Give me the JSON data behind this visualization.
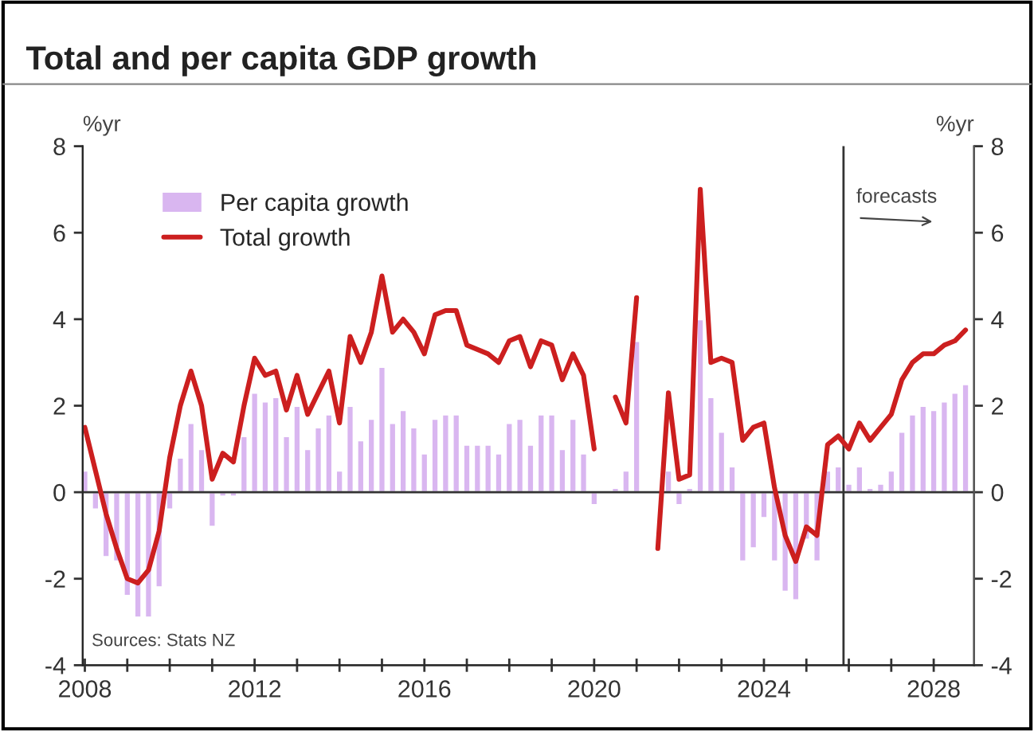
{
  "chart_data": {
    "type": "bar",
    "title": "Total and per capita GDP growth",
    "ylabel": "%yr",
    "y2label": "%yr",
    "x": [
      2008.0,
      2008.25,
      2008.5,
      2008.75,
      2009.0,
      2009.25,
      2009.5,
      2009.75,
      2010.0,
      2010.25,
      2010.5,
      2010.75,
      2011.0,
      2011.25,
      2011.5,
      2011.75,
      2012.0,
      2012.25,
      2012.5,
      2012.75,
      2013.0,
      2013.25,
      2013.5,
      2013.75,
      2014.0,
      2014.25,
      2014.5,
      2014.75,
      2015.0,
      2015.25,
      2015.5,
      2015.75,
      2016.0,
      2016.25,
      2016.5,
      2016.75,
      2017.0,
      2017.25,
      2017.5,
      2017.75,
      2018.0,
      2018.25,
      2018.5,
      2018.75,
      2019.0,
      2019.25,
      2019.5,
      2019.75,
      2020.0,
      2020.25,
      2020.5,
      2020.75,
      2021.0,
      2021.25,
      2021.5,
      2021.75,
      2022.0,
      2022.25,
      2022.5,
      2022.75,
      2023.0,
      2023.25,
      2023.5,
      2023.75,
      2024.0,
      2024.25,
      2024.5,
      2024.75,
      2025.0,
      2025.25,
      2025.5,
      2025.75,
      2026.0,
      2026.25,
      2026.5,
      2026.75,
      2027.0,
      2027.25,
      2027.5,
      2027.75,
      2028.0,
      2028.25,
      2028.5,
      2028.75
    ],
    "series": [
      {
        "name": "Per capita growth",
        "color": "#d9b6f0",
        "values": [
          0.5,
          -0.4,
          -1.5,
          -1.6,
          -2.4,
          -2.9,
          -2.9,
          -2.2,
          -0.4,
          0.8,
          1.6,
          1.0,
          -0.8,
          -0.1,
          -0.1,
          1.3,
          2.3,
          2.1,
          2.2,
          1.3,
          2.0,
          1.0,
          1.5,
          1.8,
          0.5,
          2.0,
          1.2,
          1.7,
          2.9,
          1.6,
          1.9,
          1.5,
          0.9,
          1.7,
          1.8,
          1.8,
          1.1,
          1.1,
          1.1,
          0.9,
          1.6,
          1.7,
          1.1,
          1.8,
          1.8,
          1.0,
          1.7,
          0.9,
          -0.3,
          null,
          0.1,
          0.5,
          3.5,
          null,
          null,
          0.5,
          -0.3,
          0.1,
          4.0,
          2.2,
          1.4,
          0.6,
          -1.6,
          -1.3,
          -0.6,
          -1.6,
          -2.3,
          -2.5,
          -1.1,
          -1.6,
          0.5,
          0.6,
          0.2,
          0.6,
          0.1,
          0.2,
          0.5,
          1.4,
          1.8,
          2.0,
          1.9,
          2.1,
          2.3,
          2.5
        ]
      },
      {
        "name": "Total growth",
        "type": "line",
        "color": "#cc1f1f",
        "values": [
          1.5,
          0.5,
          -0.5,
          -1.3,
          -2.0,
          -2.1,
          -1.8,
          -0.9,
          0.8,
          2.0,
          2.8,
          2.0,
          0.3,
          0.9,
          0.7,
          2.0,
          3.1,
          2.7,
          2.8,
          1.9,
          2.7,
          1.8,
          2.3,
          2.8,
          1.6,
          3.6,
          3.0,
          3.7,
          5.0,
          3.7,
          4.0,
          3.7,
          3.2,
          4.1,
          4.2,
          4.2,
          3.4,
          3.3,
          3.2,
          3.0,
          3.5,
          3.6,
          2.9,
          3.5,
          3.4,
          2.6,
          3.2,
          2.7,
          1.0,
          null,
          2.2,
          1.6,
          4.5,
          null,
          -1.3,
          2.3,
          0.3,
          0.4,
          7.0,
          3.0,
          3.1,
          3.0,
          1.2,
          1.5,
          1.6,
          0.1,
          -1.0,
          -1.6,
          -0.8,
          -1.0,
          1.1,
          1.3,
          1.0,
          1.6,
          1.2,
          1.5,
          1.8,
          2.6,
          3.0,
          3.2,
          3.2,
          3.4,
          3.5,
          3.75
        ]
      }
    ],
    "xlim": [
      2007.95,
      2028.95
    ],
    "xticks": [
      2008,
      {
        "value": 2009,
        "label": null
      },
      {
        "value": 2010,
        "label": null
      },
      {
        "value": 2011,
        "label": null
      },
      2012,
      {
        "value": 2013,
        "label": null
      },
      {
        "value": 2014,
        "label": null
      },
      {
        "value": 2015,
        "label": null
      },
      2016,
      {
        "value": 2017,
        "label": null
      },
      {
        "value": 2018,
        "label": null
      },
      {
        "value": 2019,
        "label": null
      },
      2020,
      {
        "value": 2021,
        "label": null
      },
      {
        "value": 2022,
        "label": null
      },
      {
        "value": 2023,
        "label": null
      },
      2024,
      {
        "value": 2025,
        "label": null
      },
      {
        "value": 2026,
        "label": null
      },
      {
        "value": 2027,
        "label": null
      },
      2028
    ],
    "ylim": [
      -4,
      8
    ],
    "yticks": [
      -4,
      -2,
      0,
      2,
      4,
      6,
      8
    ],
    "y2lim": [
      -4,
      8
    ],
    "y2ticks": [
      -4,
      -2,
      0,
      2,
      4,
      6,
      8
    ],
    "ref_lines": [
      {
        "axis": "y",
        "value": 0,
        "color": "#333333"
      },
      {
        "axis": "x",
        "value": 2025.875,
        "label": "forecasts",
        "color": "#333333"
      }
    ],
    "annotations": [
      "Sources: Stats NZ"
    ],
    "legend": "top left",
    "grid": false
  }
}
